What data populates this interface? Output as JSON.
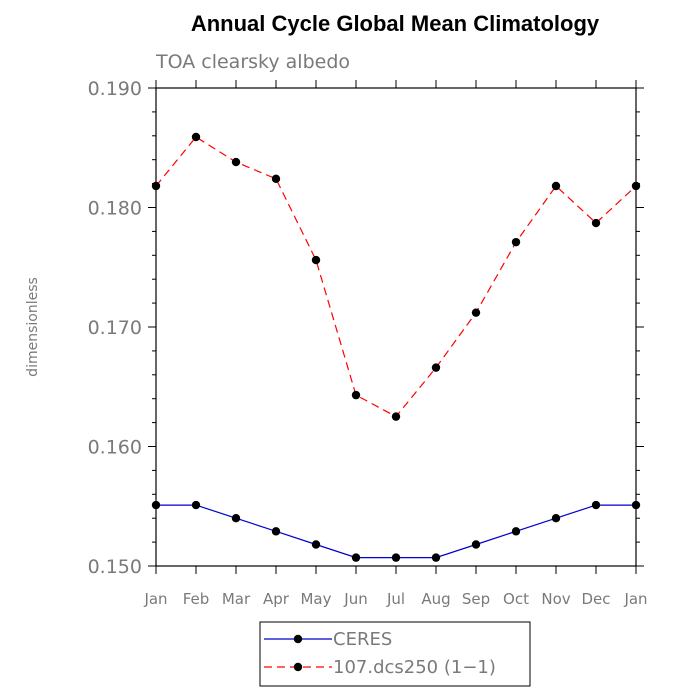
{
  "chart_data": {
    "type": "line",
    "title": "Annual Cycle Global Mean Climatology",
    "subtitle": "TOA clearsky albedo",
    "ylabel": "dimensionless",
    "xlabel": "",
    "categories": [
      "Jan",
      "Feb",
      "Mar",
      "Apr",
      "May",
      "Jun",
      "Jul",
      "Aug",
      "Sep",
      "Oct",
      "Nov",
      "Dec",
      "Jan"
    ],
    "ylim": [
      0.15,
      0.19
    ],
    "yticks": [
      "0.150",
      "0.160",
      "0.170",
      "0.180",
      "0.190"
    ],
    "grid": false,
    "legend_position": "bottom",
    "series": [
      {
        "name": "CERES",
        "color": "#0000cc",
        "dash": "solid",
        "values": [
          0.1551,
          0.1551,
          0.154,
          0.1529,
          0.1518,
          0.1507,
          0.1507,
          0.1507,
          0.1518,
          0.1529,
          0.154,
          0.1551,
          0.1551
        ]
      },
      {
        "name": "107.dcs250 (1−1)",
        "color": "#ff0000",
        "dash": "dashed",
        "values": [
          0.1818,
          0.1859,
          0.1838,
          0.1824,
          0.1756,
          0.1643,
          0.1625,
          0.1666,
          0.1712,
          0.1771,
          0.1818,
          0.1787,
          0.1818
        ]
      }
    ]
  }
}
